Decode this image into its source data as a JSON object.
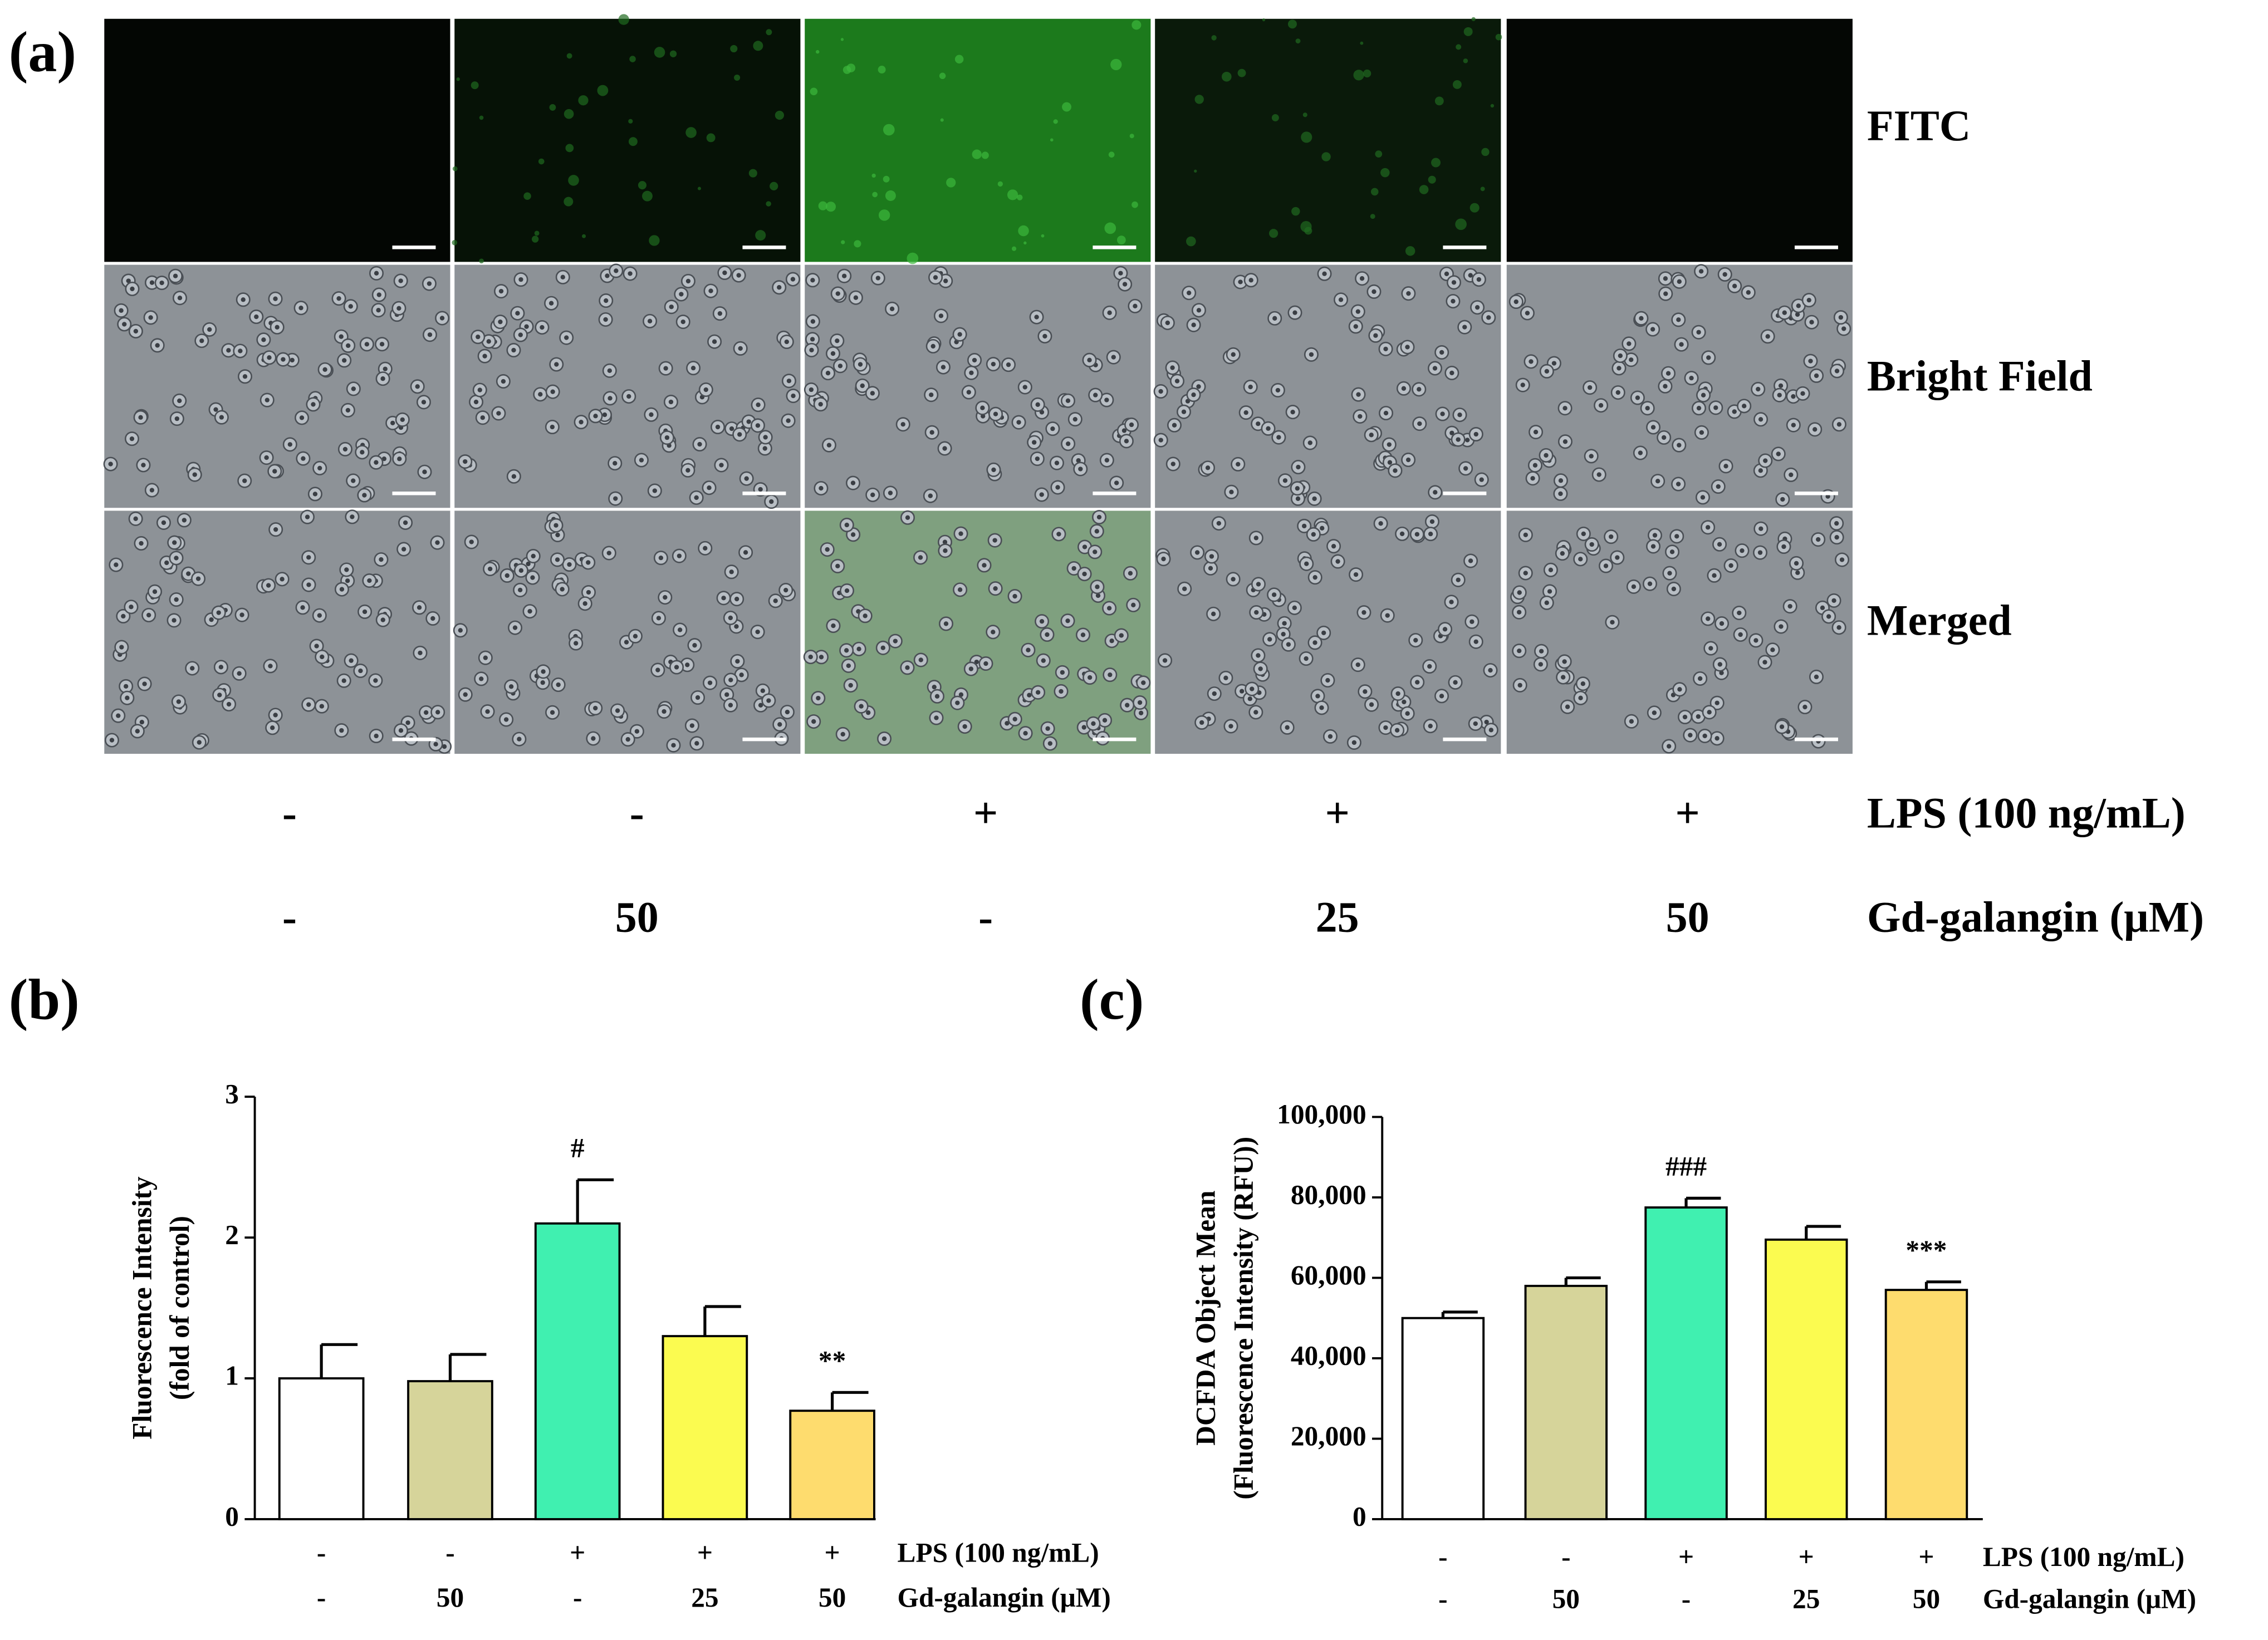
{
  "panel_a": {
    "label": "(a)",
    "rows": [
      "FITC",
      "Bright Field",
      "Merged"
    ],
    "treatments": [
      {
        "label": "LPS (100 ng/mL)",
        "values": [
          "-",
          "-",
          "+",
          "+",
          "+"
        ]
      },
      {
        "label": "Gd-galangin (μM)",
        "values": [
          "-",
          "50",
          "-",
          "25",
          "50"
        ]
      }
    ]
  },
  "chart_data": [
    {
      "type": "bar",
      "panel": "(b)",
      "ylabel": [
        "Fluorescence Intensity",
        "(fold of control)"
      ],
      "values": [
        1.0,
        0.98,
        2.1,
        1.3,
        0.77
      ],
      "errors": [
        0.24,
        0.19,
        0.31,
        0.21,
        0.13
      ],
      "colors": [
        "#ffffff",
        "#d6d49a",
        "#40f0b0",
        "#fbfb50",
        "#fedc6e"
      ],
      "annotations": [
        null,
        null,
        "#",
        null,
        "**"
      ],
      "ylim": [
        0,
        3
      ],
      "yticks": [
        0,
        1,
        2,
        3
      ],
      "rows": [
        {
          "label": "LPS (100 ng/mL)",
          "values": [
            "-",
            "-",
            "+",
            "+",
            "+"
          ]
        },
        {
          "label": "Gd-galangin (μM)",
          "values": [
            "-",
            "50",
            "-",
            "25",
            "50"
          ]
        }
      ]
    },
    {
      "type": "bar",
      "panel": "(c)",
      "ylabel": [
        "DCFDA Object Mean",
        "(Fluorescence Intensity (RFU))"
      ],
      "values": [
        50000,
        58000,
        77500,
        69500,
        57000
      ],
      "errors": [
        1500,
        2000,
        2300,
        3300,
        2000
      ],
      "colors": [
        "#ffffff",
        "#d6d49a",
        "#40f0b0",
        "#fbfb50",
        "#fedc6e"
      ],
      "annotations": [
        null,
        null,
        "###",
        null,
        "***"
      ],
      "ylim": [
        0,
        100000
      ],
      "yticks": [
        0,
        {
          "value": 20000,
          "label": "20,000"
        },
        {
          "value": 40000,
          "label": "40,000"
        },
        {
          "value": 60000,
          "label": "60,000"
        },
        {
          "value": 80000,
          "label": "80,000"
        },
        {
          "value": 100000,
          "label": "100,000"
        }
      ],
      "rows": [
        {
          "label": "LPS (100 ng/mL)",
          "values": [
            "-",
            "-",
            "+",
            "+",
            "+"
          ]
        },
        {
          "label": "Gd-galangin (μM)",
          "values": [
            "-",
            "50",
            "-",
            "25",
            "50"
          ]
        }
      ]
    }
  ]
}
